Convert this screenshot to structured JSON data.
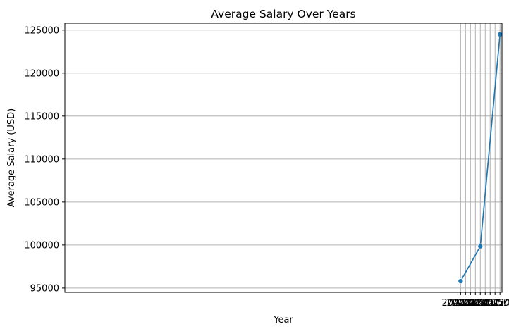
{
  "chart_data": {
    "type": "line",
    "title": "Average Salary Over Years",
    "xlabel": "Year",
    "ylabel": "Average Salary (USD)",
    "xlim": [
      1999.9,
      2022.1
    ],
    "ylim": [
      94500,
      125800
    ],
    "x_ticks": [
      2020.0,
      2020.25,
      2020.5,
      2020.75,
      2021.0,
      2021.25,
      2021.5,
      2021.75,
      2022.0
    ],
    "x_tick_labels": [
      "2020.00",
      "2020.25",
      "2020.50",
      "2020.75",
      "2021.00",
      "2021.25",
      "2021.50",
      "2021.75",
      "2022.00"
    ],
    "y_ticks": [
      95000,
      100000,
      105000,
      110000,
      115000,
      120000,
      125000
    ],
    "y_tick_labels": [
      "95000",
      "100000",
      "105000",
      "110000",
      "115000",
      "120000",
      "125000"
    ],
    "grid": true,
    "series": [
      {
        "color": "#1f77b4",
        "marker": "circle",
        "x": [
          2020,
          2021,
          2022
        ],
        "y": [
          95800,
          99850,
          124500
        ]
      }
    ]
  }
}
